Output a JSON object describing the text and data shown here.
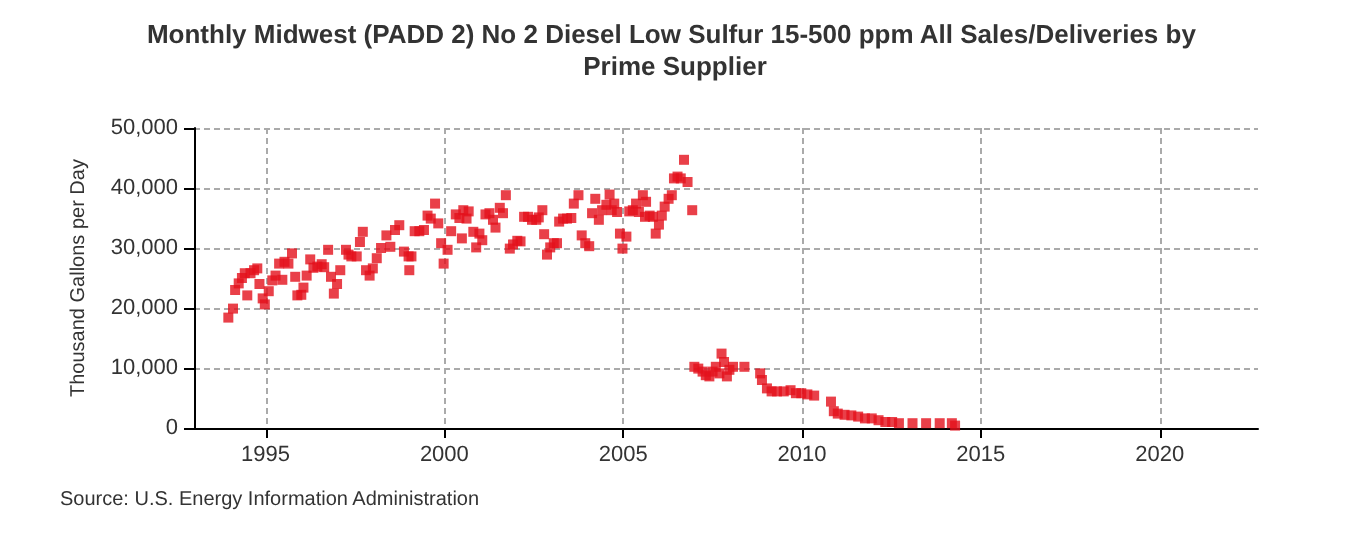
{
  "chart_data": {
    "type": "scatter",
    "title": "Monthly Midwest (PADD 2) No 2 Diesel Low Sulfur 15-500 ppm All Sales/Deliveries by Prime Supplier",
    "ylabel": "Thousand Gallons per Day",
    "annotations": [
      "Source: U.S. Energy Information Administration"
    ],
    "marker": "square",
    "grid": true,
    "xlim": [
      1993,
      2022.75
    ],
    "xticks": [
      1995,
      2000,
      2005,
      2010,
      2015,
      2020
    ],
    "ylim": [
      0,
      50000
    ],
    "yticks": [
      {
        "value": 0,
        "label": "0"
      },
      {
        "value": 10000,
        "label": "10,000"
      },
      {
        "value": 20000,
        "label": "20,000"
      },
      {
        "value": 30000,
        "label": "30,000"
      },
      {
        "value": 40000,
        "label": "40,000"
      },
      {
        "value": 50000,
        "label": "50,000"
      }
    ],
    "series": [
      {
        "color": "#e3101c",
        "x": [
          1993.96,
          1994.09,
          1994.15,
          1994.25,
          1994.34,
          1994.42,
          1994.49,
          1994.58,
          1994.68,
          1994.77,
          1994.83,
          1994.92,
          1994.98,
          1995.09,
          1995.19,
          1995.28,
          1995.38,
          1995.47,
          1995.53,
          1995.64,
          1995.74,
          1995.83,
          1995.89,
          1996.0,
          1996.06,
          1996.15,
          1996.25,
          1996.34,
          1996.45,
          1996.57,
          1996.64,
          1996.75,
          1996.83,
          1996.91,
          1997.0,
          1997.09,
          1997.25,
          1997.32,
          1997.4,
          1997.55,
          1997.64,
          1997.72,
          1997.81,
          1997.91,
          1998.0,
          1998.11,
          1998.23,
          1998.38,
          1998.49,
          1998.62,
          1998.74,
          1998.87,
          1999.0,
          1999.02,
          1999.08,
          1999.17,
          1999.3,
          1999.43,
          1999.53,
          1999.62,
          1999.74,
          1999.83,
          1999.91,
          1999.98,
          2000.09,
          2000.19,
          2000.32,
          2000.42,
          2000.53,
          2000.49,
          2000.68,
          2000.62,
          2000.81,
          2000.89,
          2000.98,
          2001.06,
          2001.15,
          2001.26,
          2001.36,
          2001.43,
          2001.55,
          2001.64,
          2001.72,
          2001.83,
          2001.92,
          2002.04,
          2002.13,
          2002.23,
          2002.34,
          2002.45,
          2002.57,
          2002.64,
          2002.74,
          2002.79,
          2002.87,
          2002.96,
          2003.06,
          2003.15,
          2003.21,
          2003.32,
          2003.43,
          2003.55,
          2003.62,
          2003.75,
          2003.84,
          2003.94,
          2004.05,
          2004.13,
          2004.22,
          2004.32,
          2004.41,
          2004.53,
          2004.62,
          2004.68,
          2004.75,
          2004.83,
          2004.91,
          2004.98,
          2005.09,
          2005.17,
          2005.27,
          2005.36,
          2005.44,
          2005.55,
          2005.64,
          2005.61,
          2005.74,
          2005.83,
          2005.91,
          2006.0,
          2006.08,
          2006.16,
          2006.27,
          2006.36,
          2006.42,
          2006.52,
          2006.61,
          2006.7,
          2006.8,
          2006.93,
          2006.99,
          2007.1,
          2007.22,
          2007.31,
          2007.41,
          2007.5,
          2007.59,
          2007.69,
          2007.75,
          2007.82,
          2007.9,
          2007.97,
          2008.07,
          2008.39,
          2008.83,
          2008.88,
          2009.02,
          2009.15,
          2009.3,
          2009.49,
          2009.68,
          2009.83,
          2009.98,
          2010.15,
          2010.34,
          2010.81,
          2010.89,
          2011.0,
          2011.19,
          2011.38,
          2011.57,
          2011.76,
          2011.95,
          2012.14,
          2012.33,
          2012.52,
          2012.71,
          2013.09,
          2013.47,
          2013.85,
          2014.19,
          2014.28
        ],
        "values": [
          18400,
          19900,
          23000,
          24100,
          25000,
          25800,
          22100,
          25800,
          26300,
          26600,
          24000,
          21600,
          20600,
          22800,
          24600,
          25400,
          27400,
          24700,
          27700,
          27400,
          29100,
          25200,
          22100,
          22200,
          23400,
          25400,
          28100,
          26700,
          26900,
          27300,
          26800,
          29700,
          25200,
          22400,
          24000,
          26300,
          29700,
          28900,
          28600,
          28600,
          31000,
          32700,
          26300,
          25400,
          26600,
          28300,
          30000,
          32100,
          30200,
          33000,
          33800,
          29400,
          28600,
          26300,
          28600,
          32800,
          32800,
          33000,
          35400,
          34900,
          37400,
          34100,
          30800,
          27400,
          29700,
          32800,
          35600,
          35000,
          36300,
          31600,
          36100,
          34900,
          32700,
          30100,
          32400,
          31300,
          35600,
          35800,
          34700,
          33400,
          36700,
          35800,
          38800,
          29900,
          30600,
          31200,
          31100,
          35200,
          35200,
          34700,
          34700,
          35100,
          36300,
          32300,
          28900,
          30100,
          30800,
          30800,
          34400,
          34900,
          34900,
          35000,
          37400,
          38800,
          32100,
          30800,
          30300,
          35800,
          38200,
          34700,
          36300,
          37200,
          38900,
          36300,
          37400,
          36000,
          32400,
          29900,
          31900,
          36100,
          36300,
          37400,
          36000,
          38800,
          37700,
          35200,
          35400,
          35200,
          32400,
          33900,
          35400,
          36900,
          38200,
          38800,
          41600,
          41900,
          41600,
          44700,
          41000,
          36300,
          10200,
          9900,
          9400,
          8800,
          8600,
          9400,
          10200,
          9100,
          12400,
          11000,
          8600,
          9700,
          10200,
          10200,
          9100,
          8000,
          6600,
          6100,
          6100,
          6100,
          6300,
          5800,
          5800,
          5600,
          5400,
          4400,
          2800,
          2400,
          2200,
          2100,
          1900,
          1600,
          1600,
          1300,
          1000,
          1000,
          800,
          800,
          800,
          800,
          800,
          400
        ]
      }
    ]
  }
}
